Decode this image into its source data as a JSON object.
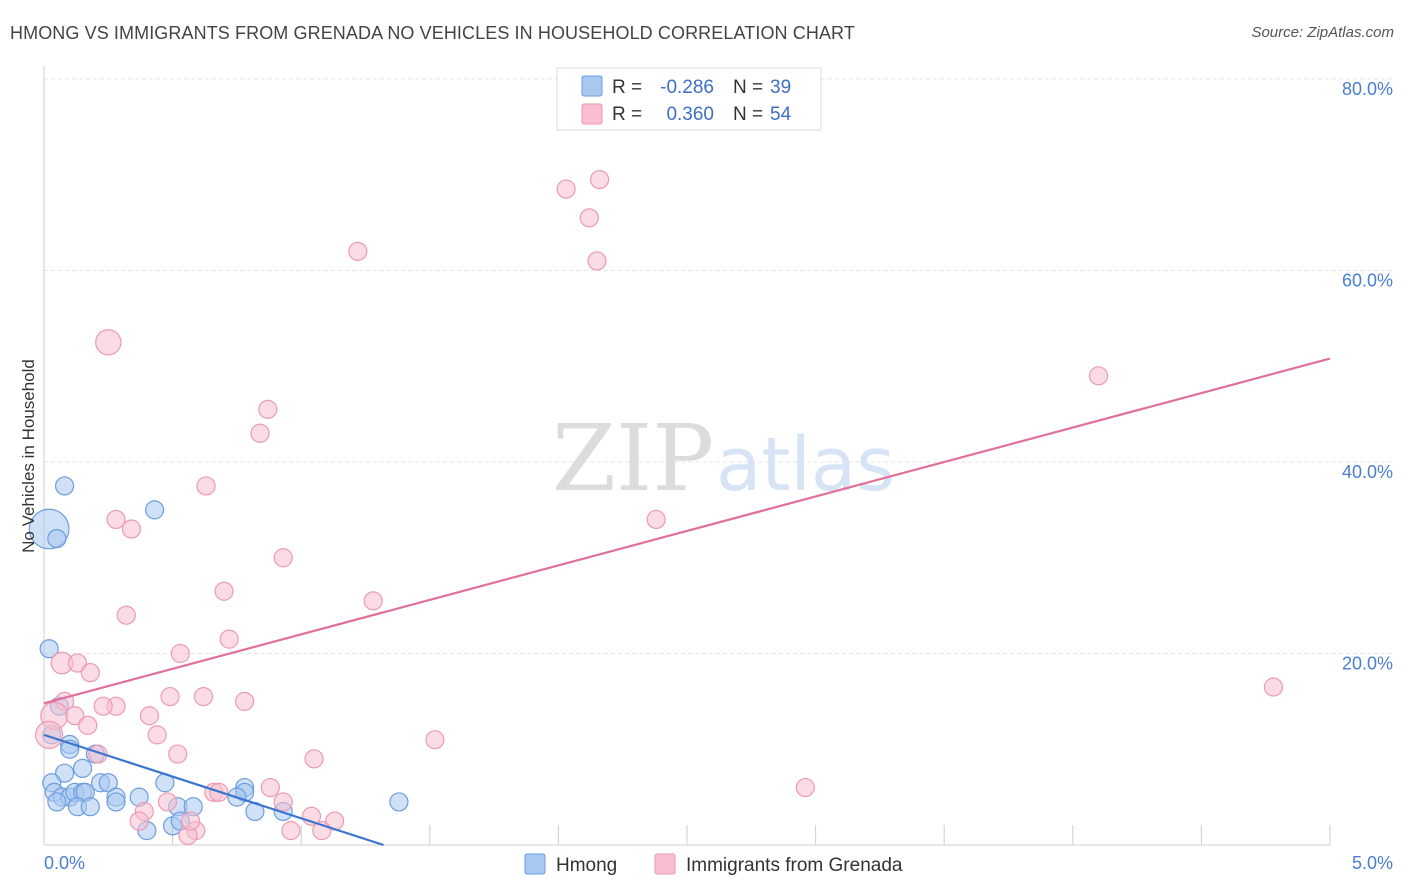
{
  "title": "HMONG VS IMMIGRANTS FROM GRENADA NO VEHICLES IN HOUSEHOLD CORRELATION CHART",
  "source": "Source: ZipAtlas.com",
  "watermark": {
    "zip": "ZIP",
    "atlas": "atlas"
  },
  "colors": {
    "hmong_fill": "#a9c8f0",
    "hmong_stroke": "#6a9ee0",
    "hmong_line": "#3a76d0",
    "grenada_fill": "#f7bfd0",
    "grenada_stroke": "#ec9ab4",
    "grenada_line": "#e0709a",
    "axis_text": "#4a7fd0",
    "grid": "#e4e4e4"
  },
  "legend": {
    "rows": [
      {
        "r_label": "R =",
        "r_value": "-0.286",
        "n_label": "N =",
        "n_value": "39"
      },
      {
        "r_label": "R =",
        "r_value": "0.360",
        "n_label": "N =",
        "n_value": "54"
      }
    ]
  },
  "bottom_legend": [
    "Hmong",
    "Immigrants from Grenada"
  ],
  "chart_data": {
    "type": "scatter",
    "title": "HMONG VS IMMIGRANTS FROM GRENADA NO VEHICLES IN HOUSEHOLD CORRELATION CHART",
    "xlabel": "",
    "ylabel": "No Vehicles in Household",
    "xlim": [
      0,
      5
    ],
    "ylim": [
      0,
      80
    ],
    "x_ticks": [
      {
        "value": 0,
        "label": "0.0%"
      },
      {
        "value": 5,
        "label": "5.0%"
      }
    ],
    "y_ticks": [
      {
        "value": 20,
        "label": "20.0%"
      },
      {
        "value": 40,
        "label": "40.0%"
      },
      {
        "value": 60,
        "label": "60.0%"
      },
      {
        "value": 80,
        "label": "80.0%"
      }
    ],
    "series": [
      {
        "name": "Hmong",
        "r": -0.286,
        "n": 39,
        "trend": {
          "x0": 0.0,
          "y0": 11.5,
          "x1": 1.32,
          "y1": 0.0
        },
        "points": [
          [
            0.02,
            33.0,
            2.2
          ],
          [
            0.05,
            32.0,
            1
          ],
          [
            0.08,
            37.5,
            1
          ],
          [
            0.43,
            35.0,
            1
          ],
          [
            0.02,
            20.5,
            1
          ],
          [
            0.06,
            14.5,
            1
          ],
          [
            0.03,
            11.5,
            1
          ],
          [
            0.1,
            10.5,
            1
          ],
          [
            0.1,
            10.0,
            1
          ],
          [
            0.2,
            9.5,
            1
          ],
          [
            0.08,
            7.5,
            1
          ],
          [
            0.15,
            8.0,
            1
          ],
          [
            0.03,
            6.5,
            1
          ],
          [
            0.22,
            6.5,
            1
          ],
          [
            0.25,
            6.5,
            1
          ],
          [
            0.04,
            5.5,
            1
          ],
          [
            0.07,
            5.0,
            1
          ],
          [
            0.1,
            5.0,
            1
          ],
          [
            0.12,
            5.5,
            1
          ],
          [
            0.15,
            5.5,
            1
          ],
          [
            0.16,
            5.5,
            1
          ],
          [
            0.05,
            4.5,
            1
          ],
          [
            0.13,
            4.0,
            1
          ],
          [
            0.18,
            4.0,
            1
          ],
          [
            0.28,
            5.0,
            1
          ],
          [
            0.28,
            4.5,
            1
          ],
          [
            0.37,
            5.0,
            1
          ],
          [
            0.47,
            6.5,
            1
          ],
          [
            0.78,
            6.0,
            1
          ],
          [
            0.78,
            5.5,
            1
          ],
          [
            0.75,
            5.0,
            1
          ],
          [
            0.52,
            4.0,
            1
          ],
          [
            0.58,
            4.0,
            1
          ],
          [
            0.93,
            3.5,
            1
          ],
          [
            1.38,
            4.5,
            1
          ],
          [
            0.5,
            2.0,
            1
          ],
          [
            0.53,
            2.5,
            1
          ],
          [
            0.4,
            1.5,
            1
          ],
          [
            0.82,
            3.5,
            1
          ]
        ]
      },
      {
        "name": "Immigrants from Grenada",
        "r": 0.36,
        "n": 54,
        "trend": {
          "x0": 0.0,
          "y0": 14.8,
          "x1": 5.0,
          "y1": 50.8
        },
        "points": [
          [
            0.25,
            52.5,
            1.4
          ],
          [
            1.22,
            62.0,
            1
          ],
          [
            2.03,
            68.5,
            1
          ],
          [
            2.16,
            69.5,
            1
          ],
          [
            2.12,
            65.5,
            1
          ],
          [
            2.15,
            61.0,
            1
          ],
          [
            4.1,
            49.0,
            1
          ],
          [
            0.87,
            45.5,
            1
          ],
          [
            0.84,
            43.0,
            1
          ],
          [
            0.63,
            37.5,
            1
          ],
          [
            0.28,
            34.0,
            1
          ],
          [
            0.34,
            33.0,
            1
          ],
          [
            2.38,
            34.0,
            1
          ],
          [
            0.93,
            30.0,
            1
          ],
          [
            0.7,
            26.5,
            1
          ],
          [
            1.28,
            25.5,
            1
          ],
          [
            0.32,
            24.0,
            1
          ],
          [
            0.72,
            21.5,
            1
          ],
          [
            0.53,
            20.0,
            1
          ],
          [
            0.07,
            19.0,
            1.2
          ],
          [
            0.13,
            19.0,
            1
          ],
          [
            0.18,
            18.0,
            1
          ],
          [
            4.78,
            16.5,
            1
          ],
          [
            0.62,
            15.5,
            1
          ],
          [
            0.49,
            15.5,
            1
          ],
          [
            0.78,
            15.0,
            1
          ],
          [
            0.08,
            15.0,
            1
          ],
          [
            0.28,
            14.5,
            1
          ],
          [
            0.23,
            14.5,
            1
          ],
          [
            0.04,
            13.5,
            1.5
          ],
          [
            0.12,
            13.5,
            1
          ],
          [
            0.17,
            12.5,
            1
          ],
          [
            0.41,
            13.5,
            1
          ],
          [
            0.44,
            11.5,
            1
          ],
          [
            0.02,
            11.5,
            1.5
          ],
          [
            1.52,
            11.0,
            1
          ],
          [
            0.52,
            9.5,
            1
          ],
          [
            0.21,
            9.5,
            1
          ],
          [
            1.05,
            9.0,
            1
          ],
          [
            0.88,
            6.0,
            1
          ],
          [
            2.96,
            6.0,
            1
          ],
          [
            0.66,
            5.5,
            1
          ],
          [
            0.68,
            5.5,
            1
          ],
          [
            0.48,
            4.5,
            1
          ],
          [
            0.93,
            4.5,
            1
          ],
          [
            0.39,
            3.5,
            1
          ],
          [
            1.04,
            3.0,
            1
          ],
          [
            1.13,
            2.5,
            1
          ],
          [
            0.37,
            2.5,
            1
          ],
          [
            0.59,
            1.5,
            1
          ],
          [
            0.96,
            1.5,
            1
          ],
          [
            1.08,
            1.5,
            1
          ],
          [
            0.56,
            1.0,
            1
          ],
          [
            0.57,
            2.5,
            1
          ]
        ]
      }
    ]
  }
}
